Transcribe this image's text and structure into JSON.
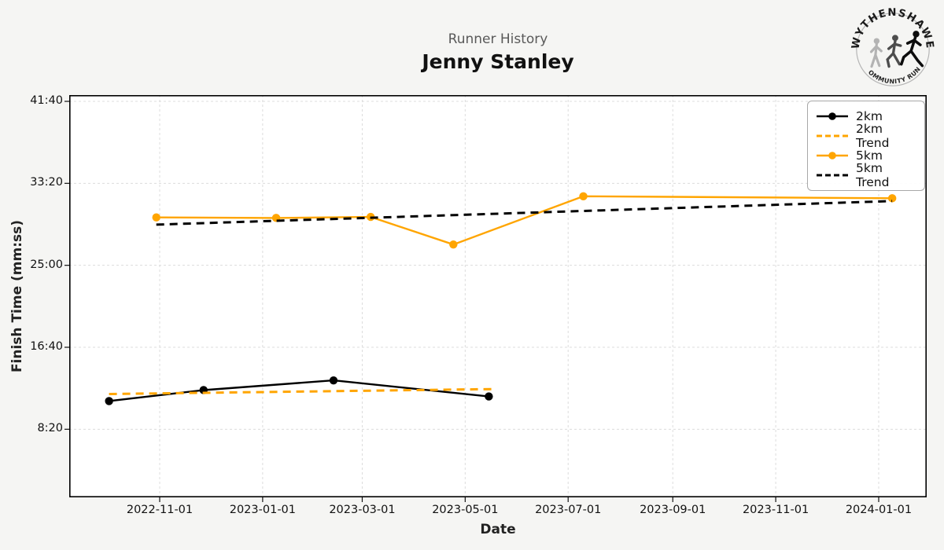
{
  "header": {
    "subtitle": "Runner History",
    "title": "Jenny Stanley"
  },
  "logo": {
    "top_text": "WYTHENSHAWE",
    "bottom_text": "COMMUNITY RUN",
    "runner_colors": [
      "#b3b3b3",
      "#4d4d4d",
      "#0d0d0d"
    ]
  },
  "chart_data": {
    "type": "line",
    "title": "Runner History",
    "runner_name": "Jenny Stanley",
    "xlabel": "Date",
    "ylabel": "Finish Time (mm:ss)",
    "grid": true,
    "legend_position": "upper right",
    "background": "#f5f5f3",
    "x_ticks": [
      "2022-11-01",
      "2023-01-01",
      "2023-03-01",
      "2023-05-01",
      "2023-07-01",
      "2023-09-01",
      "2023-11-01",
      "2024-01-01"
    ],
    "y_ticks": [
      {
        "label": "41:40",
        "seconds": 2500
      },
      {
        "label": "33:20",
        "seconds": 2000
      },
      {
        "label": "25:00",
        "seconds": 1500
      },
      {
        "label": "16:40",
        "seconds": 1000
      },
      {
        "label": "8:20",
        "seconds": 500
      }
    ],
    "ylim_seconds": [
      85,
      2538
    ],
    "xlim_dates": [
      "2022-09-08",
      "2024-01-29"
    ],
    "series": [
      {
        "name": "2km",
        "color": "#000000",
        "style": "solid",
        "marker": true,
        "points": [
          {
            "date": "2022-10-02",
            "time": "11:12",
            "seconds": 672
          },
          {
            "date": "2022-11-27",
            "time": "12:19",
            "seconds": 739
          },
          {
            "date": "2023-02-12",
            "time": "13:18",
            "seconds": 798
          },
          {
            "date": "2023-05-15",
            "time": "11:40",
            "seconds": 700
          }
        ]
      },
      {
        "name": "2km Trend",
        "color": "#FFA500",
        "style": "dashed",
        "marker": false,
        "points": [
          {
            "date": "2022-10-02",
            "time": "11:55",
            "seconds": 715
          },
          {
            "date": "2023-05-17",
            "time": "12:25",
            "seconds": 745
          }
        ]
      },
      {
        "name": "5km",
        "color": "#FFA500",
        "style": "solid",
        "marker": true,
        "points": [
          {
            "date": "2022-10-30",
            "time": "29:52",
            "seconds": 1792
          },
          {
            "date": "2023-01-09",
            "time": "29:49",
            "seconds": 1789
          },
          {
            "date": "2023-03-06",
            "time": "29:55",
            "seconds": 1795
          },
          {
            "date": "2023-04-24",
            "time": "27:07",
            "seconds": 1627
          },
          {
            "date": "2023-07-10",
            "time": "32:01",
            "seconds": 1921
          },
          {
            "date": "2024-01-09",
            "time": "31:49",
            "seconds": 1909
          }
        ]
      },
      {
        "name": "5km Trend",
        "color": "#000000",
        "style": "dashed",
        "marker": false,
        "points": [
          {
            "date": "2022-10-30",
            "time": "29:08",
            "seconds": 1748
          },
          {
            "date": "2024-01-09",
            "time": "31:32",
            "seconds": 1892
          }
        ]
      }
    ]
  }
}
